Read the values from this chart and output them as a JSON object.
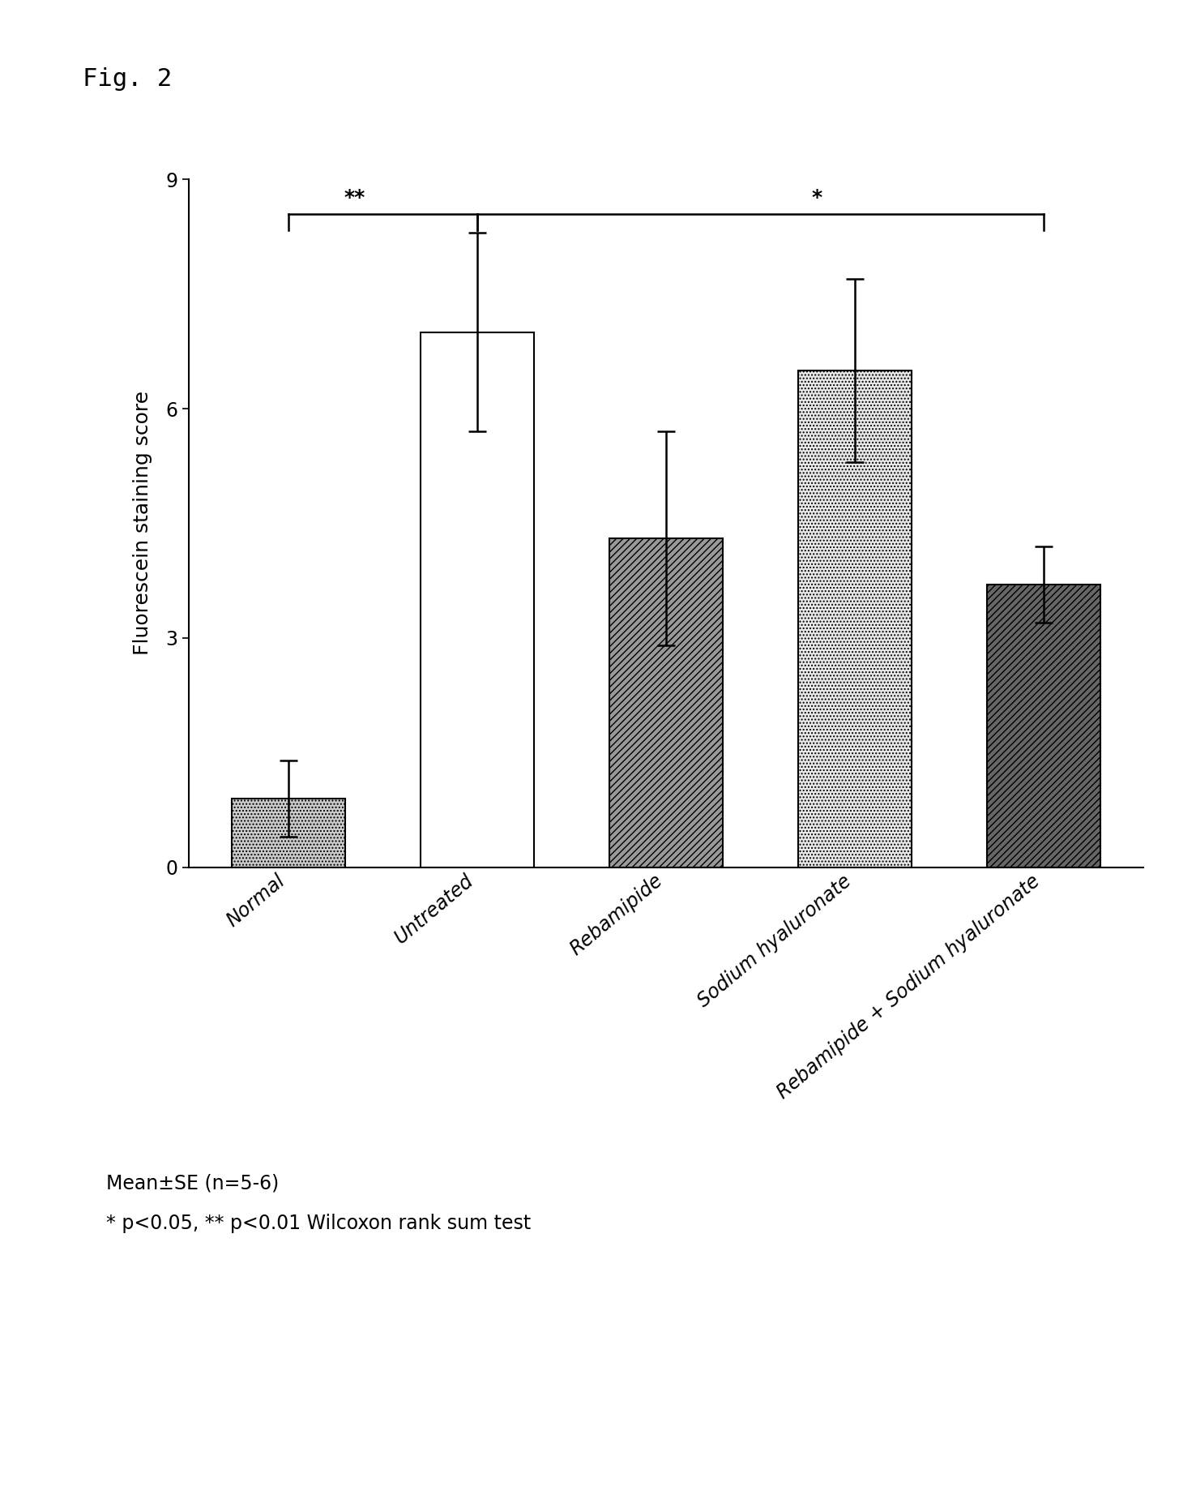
{
  "categories": [
    "Normal",
    "Untreated",
    "Rebamipide",
    "Sodium hyaluronate",
    "Rebamipide + Sodium hyaluronate"
  ],
  "values": [
    0.9,
    7.0,
    4.3,
    6.5,
    3.7
  ],
  "errors": [
    0.5,
    1.3,
    1.4,
    1.2,
    0.5
  ],
  "ylabel": "Fluorescein staining score",
  "ylim": [
    0,
    9
  ],
  "yticks": [
    0,
    3,
    6,
    9
  ],
  "title": "Fig. 2",
  "footnote1": "Mean±SE (n=5-6)",
  "footnote2": "* p<0.05, ** p<0.01 Wilcoxon rank sum test",
  "background_color": "#ffffff",
  "fontsize_title": 22,
  "fontsize_axis": 18,
  "fontsize_tick": 17,
  "fontsize_footnote": 17,
  "fontsize_bracket_label": 18
}
